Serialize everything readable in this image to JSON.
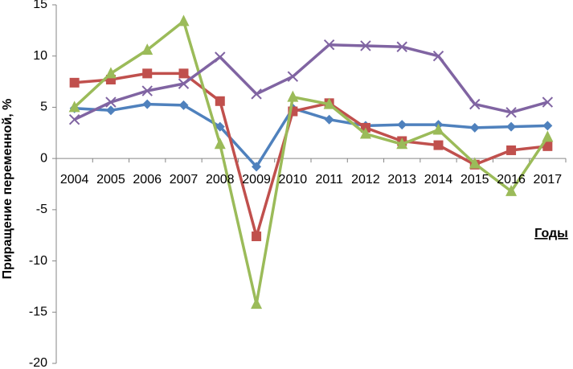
{
  "chart_data": {
    "type": "line",
    "title": "",
    "ylabel": "Приращение переменной, %",
    "xlabel": "Годы",
    "ylim": [
      -20,
      15
    ],
    "yticks": [
      15,
      10,
      5,
      0,
      -5,
      -10,
      -15,
      -20
    ],
    "grid": false,
    "legend": "none",
    "categories": [
      "2004",
      "2005",
      "2006",
      "2007",
      "2008",
      "2009",
      "2010",
      "2011",
      "2012",
      "2013",
      "2014",
      "2015",
      "2016",
      "2017"
    ],
    "series": [
      {
        "color": "#4F81BD",
        "marker": "diamond",
        "values": [
          4.9,
          4.7,
          5.3,
          5.2,
          3.1,
          -0.8,
          4.9,
          3.8,
          3.2,
          3.3,
          3.3,
          3.0,
          3.1,
          3.2
        ]
      },
      {
        "color": "#C0504D",
        "marker": "square",
        "values": [
          7.4,
          7.7,
          8.3,
          8.3,
          5.6,
          -7.6,
          4.6,
          5.4,
          3.0,
          1.7,
          1.3,
          -0.6,
          0.8,
          1.2
        ]
      },
      {
        "color": "#9BBB59",
        "marker": "triangle",
        "values": [
          5.0,
          8.3,
          10.6,
          13.4,
          1.4,
          -14.2,
          6.0,
          5.3,
          2.4,
          1.4,
          2.8,
          -0.5,
          -3.2,
          2.1
        ]
      },
      {
        "color": "#8064A2",
        "marker": "cross",
        "values": [
          3.8,
          5.5,
          6.6,
          7.3,
          9.9,
          6.3,
          8.0,
          11.1,
          11.0,
          10.9,
          10.0,
          5.3,
          4.5,
          5.5
        ]
      }
    ]
  }
}
